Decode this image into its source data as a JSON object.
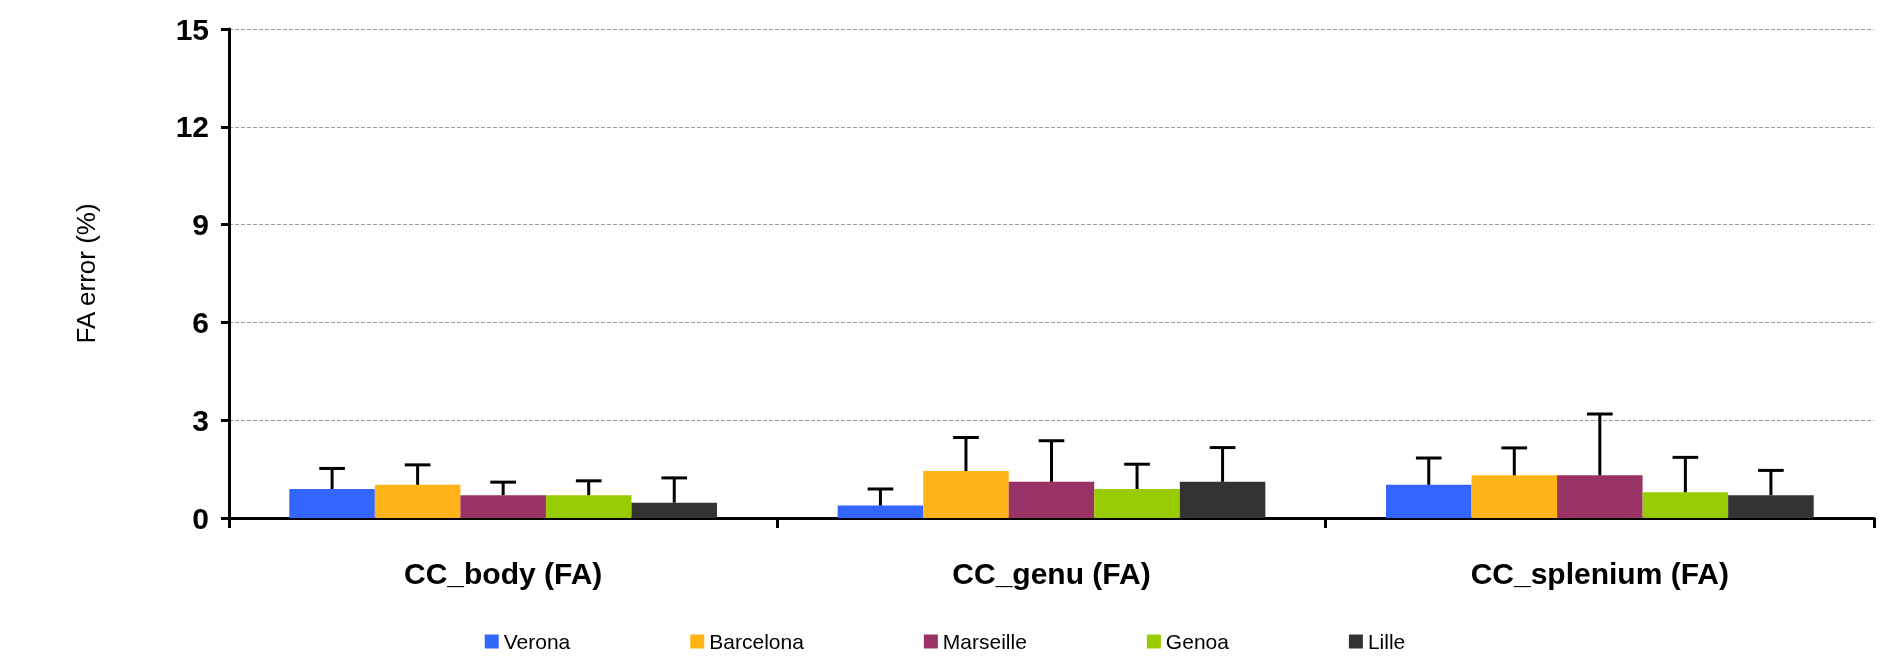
{
  "chart_data": {
    "type": "bar",
    "ylabel": "FA error (%)",
    "categories": [
      "CC_body (FA)",
      "CC_genu (FA)",
      "CC_splenium (FA)"
    ],
    "series": [
      {
        "name": "Verona",
        "color": "#3366ff",
        "values": [
          0.89,
          0.38,
          1.02
        ],
        "errors": [
          [
            0.89,
            1.52
          ],
          [
            0.38,
            0.89
          ],
          [
            1.02,
            1.84
          ]
        ]
      },
      {
        "name": "Barcelona",
        "color": "#ffb317",
        "values": [
          1.02,
          1.44,
          1.31
        ],
        "errors": [
          [
            1.02,
            1.63
          ],
          [
            1.44,
            2.47
          ],
          [
            1.31,
            2.15
          ]
        ]
      },
      {
        "name": "Marseille",
        "color": "#993366",
        "values": [
          0.7,
          1.11,
          1.31
        ],
        "errors": [
          [
            0.7,
            1.1
          ],
          [
            1.11,
            2.37
          ],
          [
            1.31,
            3.19
          ]
        ]
      },
      {
        "name": "Genoa",
        "color": "#99cc00",
        "values": [
          0.7,
          0.89,
          0.79
        ],
        "errors": [
          [
            0.7,
            1.14
          ],
          [
            0.89,
            1.65
          ],
          [
            0.79,
            1.86
          ]
        ]
      },
      {
        "name": "Lille",
        "color": "#333333",
        "values": [
          0.47,
          1.11,
          0.7
        ],
        "errors": [
          [
            0.47,
            1.23
          ],
          [
            1.11,
            2.16
          ],
          [
            0.7,
            1.46
          ]
        ]
      }
    ],
    "ylim": [
      0,
      15
    ],
    "yticks": [
      0,
      3,
      6,
      9,
      12,
      15
    ],
    "grid": "y",
    "legend": "bottom"
  }
}
